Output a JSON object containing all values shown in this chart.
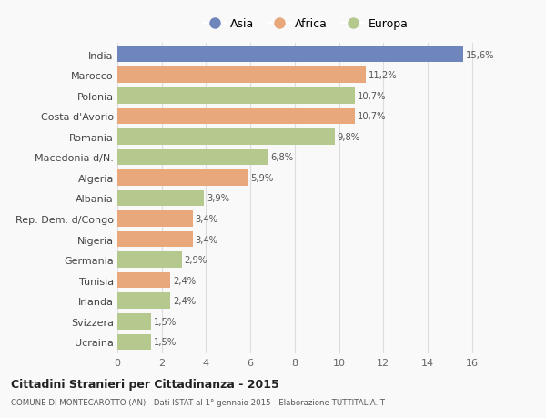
{
  "countries": [
    "India",
    "Marocco",
    "Polonia",
    "Costa d'Avorio",
    "Romania",
    "Macedonia d/N.",
    "Algeria",
    "Albania",
    "Rep. Dem. d/Congo",
    "Nigeria",
    "Germania",
    "Tunisia",
    "Irlanda",
    "Svizzera",
    "Ucraina"
  ],
  "values": [
    15.6,
    11.2,
    10.7,
    10.7,
    9.8,
    6.8,
    5.9,
    3.9,
    3.4,
    3.4,
    2.9,
    2.4,
    2.4,
    1.5,
    1.5
  ],
  "labels": [
    "15,6%",
    "11,2%",
    "10,7%",
    "10,7%",
    "9,8%",
    "6,8%",
    "5,9%",
    "3,9%",
    "3,4%",
    "3,4%",
    "2,9%",
    "2,4%",
    "2,4%",
    "1,5%",
    "1,5%"
  ],
  "continents": [
    "Asia",
    "Africa",
    "Europa",
    "Africa",
    "Europa",
    "Europa",
    "Africa",
    "Europa",
    "Africa",
    "Africa",
    "Europa",
    "Africa",
    "Europa",
    "Europa",
    "Europa"
  ],
  "colors": {
    "Asia": "#6e86bb",
    "Africa": "#e8a87c",
    "Europa": "#b5c98e"
  },
  "title": "Cittadini Stranieri per Cittadinanza - 2015",
  "subtitle": "COMUNE DI MONTECAROTTO (AN) - Dati ISTAT al 1° gennaio 2015 - Elaborazione TUTTITALIA.IT",
  "xlim": [
    0,
    17
  ],
  "xticks": [
    0,
    2,
    4,
    6,
    8,
    10,
    12,
    14,
    16
  ],
  "background_color": "#f9f9f9",
  "grid_color": "#dddddd",
  "bar_height": 0.78
}
